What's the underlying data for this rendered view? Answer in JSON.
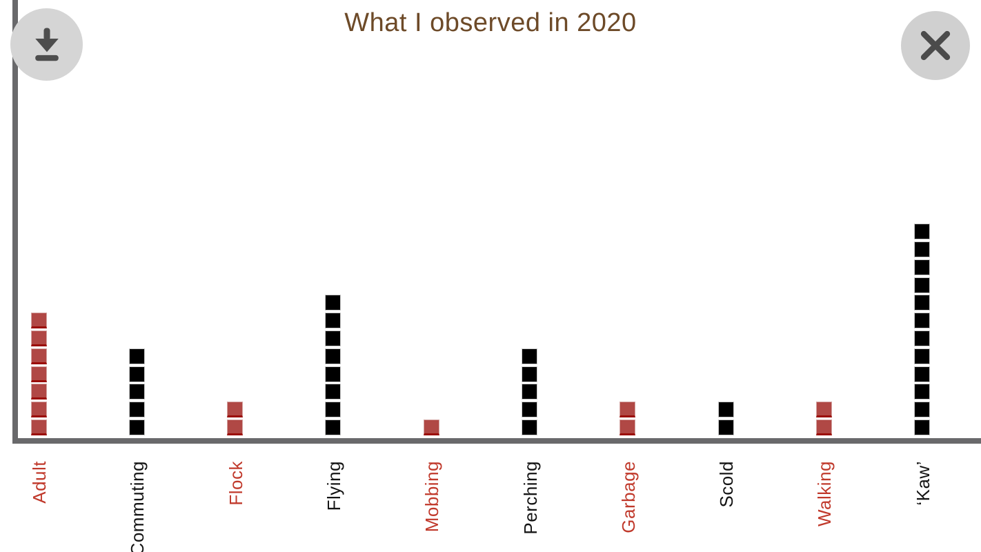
{
  "window": {
    "background": "#ffffff",
    "axis_color": "#69696b"
  },
  "header": {
    "title": "What I observed in 2020",
    "title_color": "#6d4a28"
  },
  "toolbar": {
    "download_button": {
      "icon": "download-arrow",
      "circle_color": "#d5d5d5",
      "glyph_color": "#4d4d4d"
    },
    "close_button": {
      "icon": "close-x",
      "circle_color": "#d0d0d0",
      "glyph_color": "#4b4b4b"
    }
  },
  "chart_data": {
    "type": "bar",
    "variant": "unit-square-pictograph",
    "title": "What I observed in 2020",
    "unit_value": 1,
    "categories": [
      "Adult",
      "Commuting",
      "Flock",
      "Flying",
      "Mobbing",
      "Perching",
      "Garbage",
      "Scold",
      "Walking",
      "‘Kaw’"
    ],
    "values": [
      7,
      5,
      2,
      8,
      1,
      5,
      2,
      2,
      2,
      12
    ],
    "color_names": [
      "red",
      "black",
      "red",
      "black",
      "red",
      "black",
      "red",
      "black",
      "red",
      "black"
    ],
    "palette": {
      "red": {
        "fill": "#b04845",
        "edge": "#d3a3a1",
        "edge_bottom": "#9b0d06",
        "label": "#c0392b"
      },
      "black": {
        "fill": "#000000",
        "edge": "#c9c9c9",
        "edge_bottom": "#c9c9c9",
        "label": "#141414"
      }
    },
    "xlabel": "",
    "ylabel": "",
    "ylim": [
      0,
      12
    ],
    "grid": false,
    "legend": false,
    "x_tick_rotation_deg": 90
  }
}
